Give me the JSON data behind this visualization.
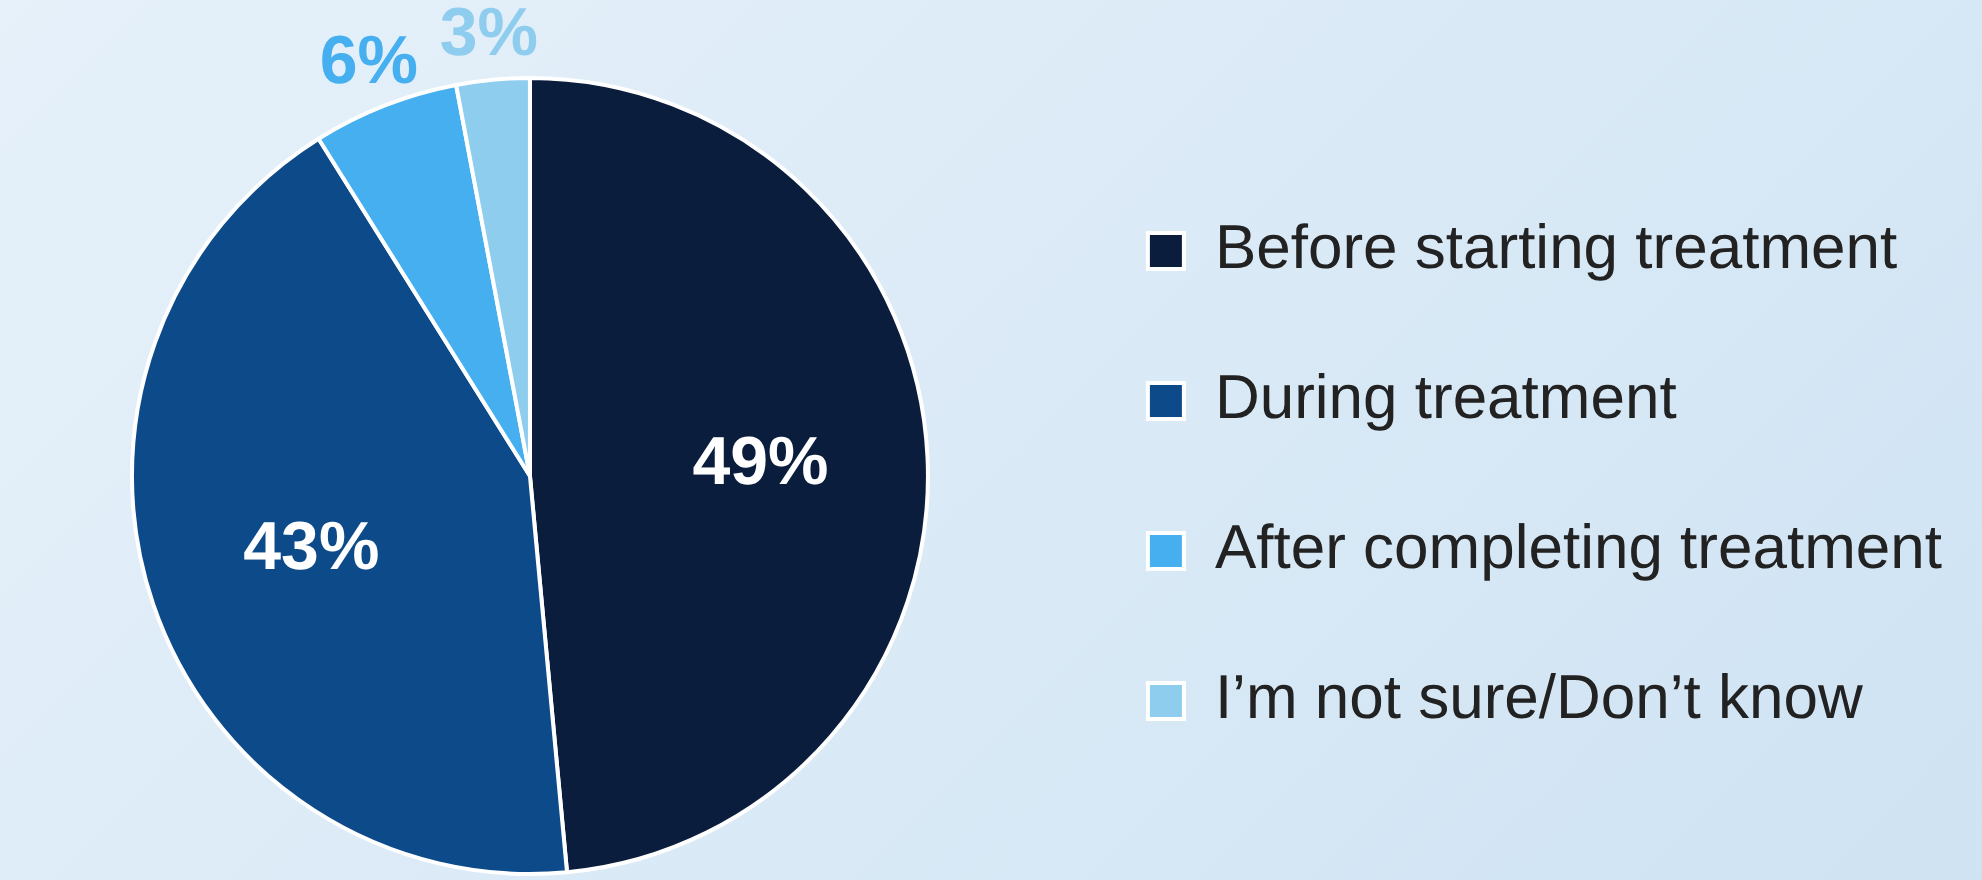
{
  "chart_data": {
    "type": "pie",
    "categories": [
      "Before starting treatment",
      "During treatment",
      "After completing treatment",
      "I’m not sure/Don’t know"
    ],
    "values": [
      49,
      43,
      6,
      3
    ],
    "colors": [
      "#0b1d3c",
      "#0d4a8a",
      "#45aff0",
      "#8fcdef"
    ],
    "value_labels": [
      "49%",
      "43%",
      "6%",
      "3%"
    ],
    "legend": "right"
  }
}
